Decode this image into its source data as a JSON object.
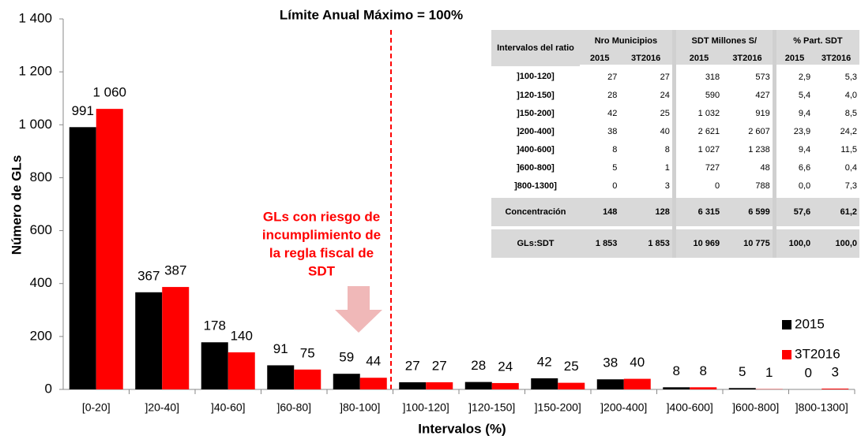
{
  "chart_data": {
    "type": "bar",
    "title": "Límite Anual Máximo = 100%",
    "x_label": "Intervalos (%)",
    "y_label": "Número de GLs",
    "annotation": [
      "GLs con riesgo de",
      "incumplimiento de",
      "la regla fiscal de",
      "SDT"
    ],
    "categories": [
      "[0-20]",
      "]20-40]",
      "]40-60]",
      "]60-80]",
      "]80-100]",
      "]100-120]",
      "]120-150]",
      "]150-200]",
      "]200-400]",
      "]400-600]",
      "]600-800]",
      "]800-1300]"
    ],
    "series": [
      {
        "name": "2015",
        "color": "#000000",
        "values": [
          991,
          367,
          178,
          91,
          59,
          27,
          28,
          42,
          38,
          8,
          5,
          0
        ]
      },
      {
        "name": "3T2016",
        "color": "#ff0000",
        "values": [
          1060,
          387,
          140,
          75,
          44,
          27,
          24,
          25,
          40,
          8,
          1,
          3
        ],
        "value_labels": [
          "1 060",
          "387",
          "140",
          "75",
          "44",
          "27",
          "24",
          "25",
          "40",
          "8",
          "1",
          "3"
        ]
      }
    ],
    "ylim": [
      0,
      1400
    ],
    "yticks": [
      0,
      200,
      400,
      600,
      800,
      {
        "value": 1000,
        "label": "1 000"
      },
      {
        "value": 1200,
        "label": "1 200"
      },
      {
        "value": 1400,
        "label": "1 400"
      }
    ],
    "grid": false,
    "legend": "right"
  },
  "table": {
    "header": [
      "Intervalos del ratio",
      "Nro Municipios",
      "SDT Millones S/",
      "% Part. SDT"
    ],
    "subheader": [
      "2015",
      "3T2016",
      "2015",
      "3T2016",
      "2015",
      "3T2016"
    ],
    "rows": [
      [
        "]100-120]",
        "27",
        "27",
        "318",
        "573",
        "2,9",
        "5,3"
      ],
      [
        "]120-150]",
        "28",
        "24",
        "590",
        "427",
        "5,4",
        "4,0"
      ],
      [
        "]150-200]",
        "42",
        "25",
        "1 032",
        "919",
        "9,4",
        "8,5"
      ],
      [
        "]200-400]",
        "38",
        "40",
        "2 621",
        "2 607",
        "23,9",
        "24,2"
      ],
      [
        "]400-600]",
        "8",
        "8",
        "1 027",
        "1 238",
        "9,4",
        "11,5"
      ],
      [
        "]600-800]",
        "5",
        "1",
        "727",
        "48",
        "6,6",
        "0,4"
      ],
      [
        "]800-1300]",
        "0",
        "3",
        "0",
        "788",
        "0,0",
        "7,3"
      ]
    ],
    "footer": [
      [
        "Concentración",
        "148",
        "128",
        "6 315",
        "6 599",
        "57,6",
        "61,2"
      ],
      [
        "GLs:SDT",
        "1 853",
        "1 853",
        "10 969",
        "10 775",
        "100,0",
        "100,0"
      ]
    ]
  }
}
